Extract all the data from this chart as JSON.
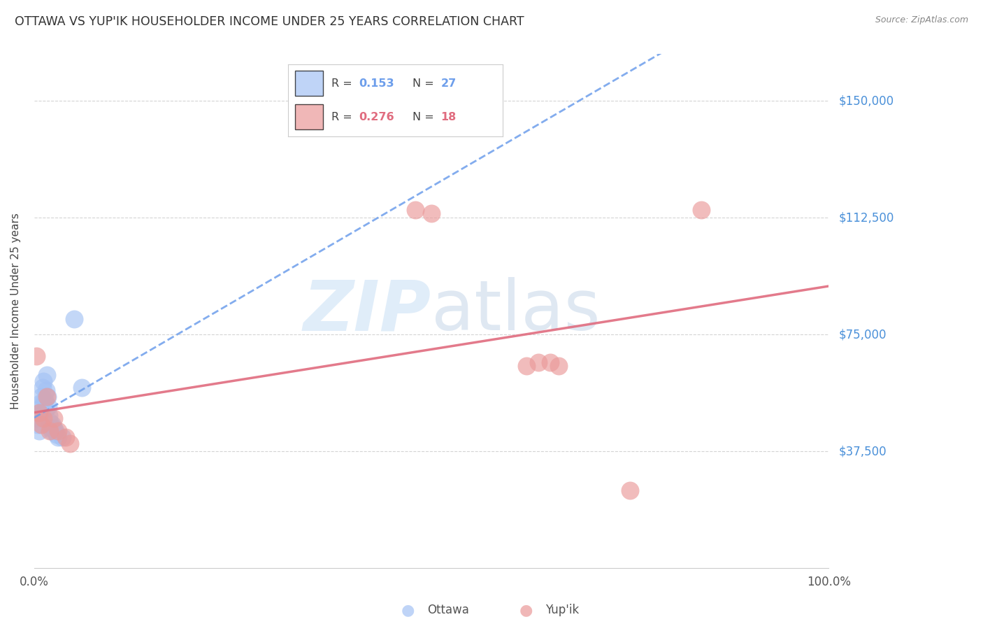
{
  "title": "OTTAWA VS YUP'IK HOUSEHOLDER INCOME UNDER 25 YEARS CORRELATION CHART",
  "source": "Source: ZipAtlas.com",
  "ylabel": "Householder Income Under 25 years",
  "ytick_labels": [
    "$37,500",
    "$75,000",
    "$112,500",
    "$150,000"
  ],
  "ytick_values": [
    37500,
    75000,
    112500,
    150000
  ],
  "ymin": 0,
  "ymax": 165000,
  "xmin": 0.0,
  "xmax": 1.0,
  "legend_ottawa_R": "0.153",
  "legend_ottawa_N": "27",
  "legend_yupik_R": "0.276",
  "legend_yupik_N": "18",
  "ottawa_color": "#a4c2f4",
  "yupik_color": "#ea9999",
  "ottawa_line_color": "#6d9eeb",
  "yupik_line_color": "#e06c7f",
  "watermark_zip": "ZIP",
  "watermark_atlas": "atlas",
  "ottawa_x": [
    0.003,
    0.005,
    0.006,
    0.007,
    0.008,
    0.009,
    0.01,
    0.011,
    0.012,
    0.013,
    0.014,
    0.015,
    0.016,
    0.017,
    0.018,
    0.019,
    0.02,
    0.021,
    0.022,
    0.023,
    0.025,
    0.027,
    0.028,
    0.03,
    0.035,
    0.05,
    0.06
  ],
  "ottawa_y": [
    48000,
    46000,
    44000,
    50000,
    53000,
    55000,
    52000,
    58000,
    60000,
    54000,
    51000,
    57000,
    62000,
    55000,
    52000,
    49000,
    47000,
    45000,
    44000,
    46000,
    45000,
    44000,
    43000,
    42000,
    42000,
    80000,
    58000
  ],
  "yupik_x": [
    0.003,
    0.006,
    0.009,
    0.012,
    0.016,
    0.02,
    0.025,
    0.03,
    0.04,
    0.045,
    0.48,
    0.5,
    0.62,
    0.635,
    0.65,
    0.66,
    0.75,
    0.84
  ],
  "yupik_y": [
    68000,
    50000,
    46000,
    48000,
    55000,
    44000,
    48000,
    44000,
    42000,
    40000,
    115000,
    114000,
    65000,
    66000,
    66000,
    65000,
    25000,
    115000
  ],
  "background_color": "#ffffff",
  "grid_color": "#d0d0d0"
}
